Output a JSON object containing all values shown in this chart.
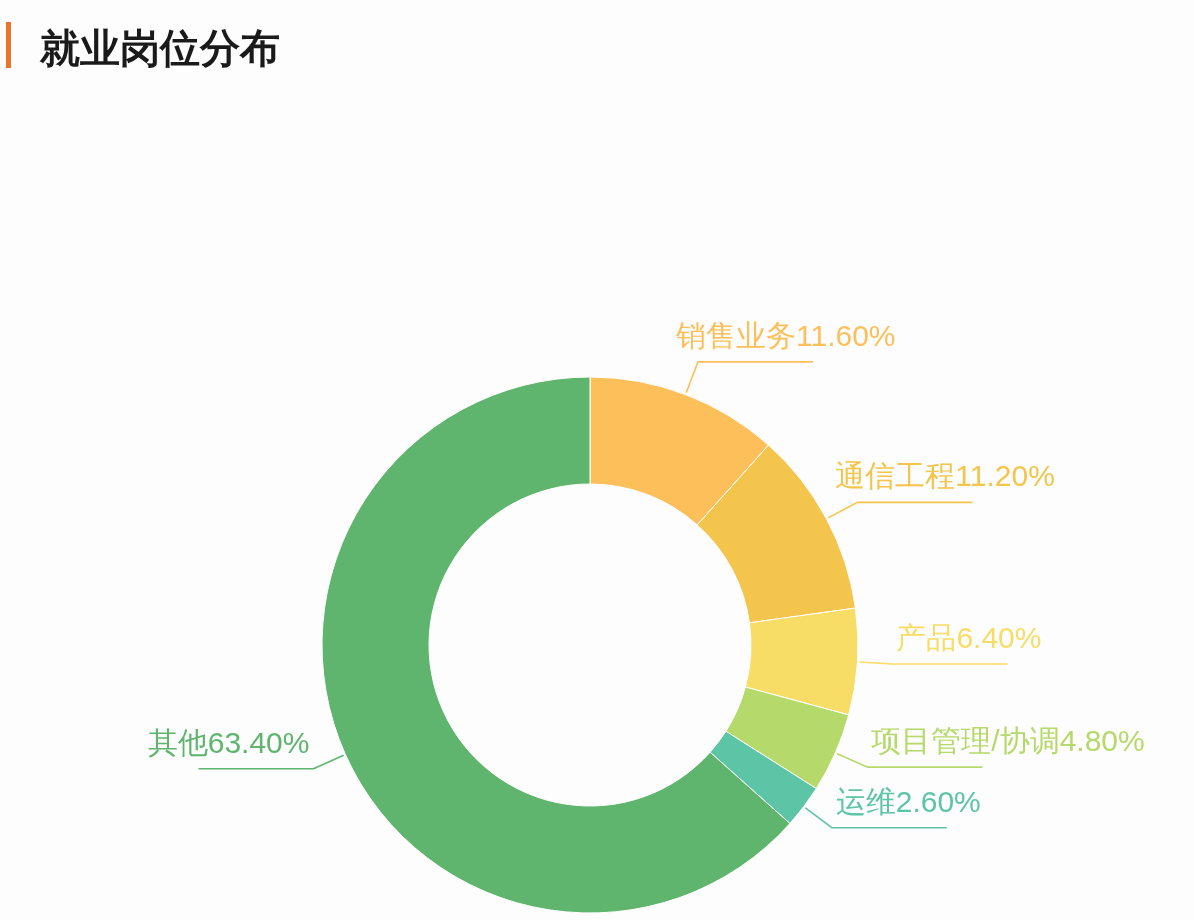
{
  "chart_data": {
    "type": "donut",
    "title": "就业岗位分布",
    "categories": [
      "销售业务",
      "通信工程",
      "产品",
      "项目管理/协调",
      "运维",
      "其他"
    ],
    "values": [
      11.6,
      11.2,
      6.4,
      4.8,
      2.6,
      63.4
    ],
    "colors": [
      "#fdbf5a",
      "#f4c54c",
      "#f7dc66",
      "#b6d96b",
      "#5cc5a6",
      "#5fb56e"
    ],
    "value_labels": [
      "11.60%",
      "11.20%",
      "6.40%",
      "4.80%",
      "2.60%",
      "63.40%"
    ]
  }
}
